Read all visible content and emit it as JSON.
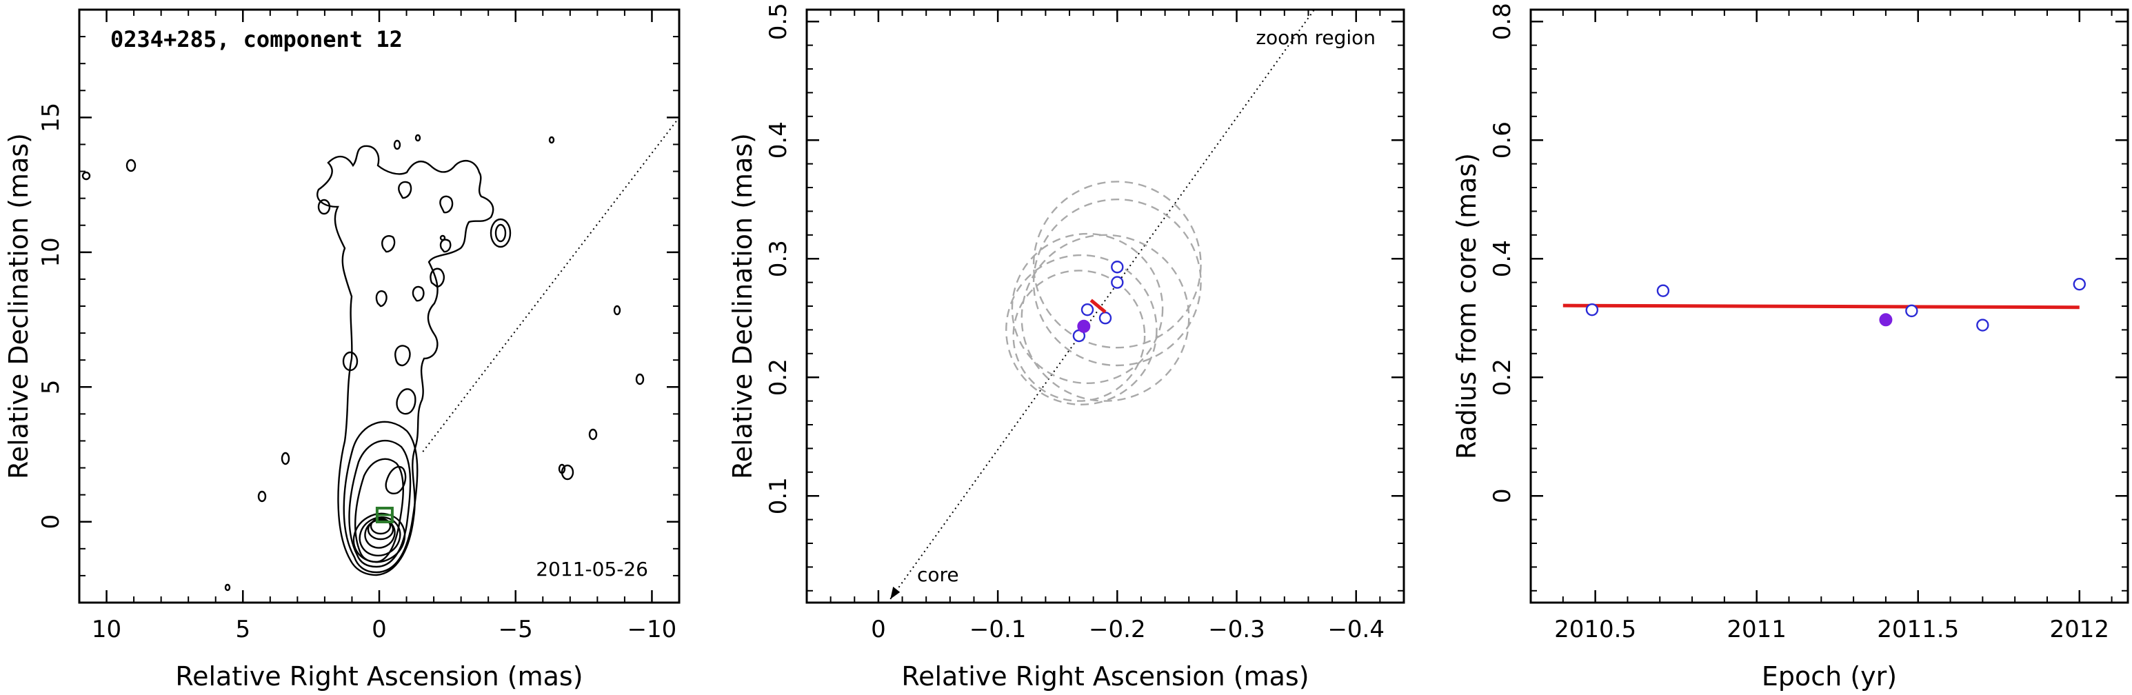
{
  "chart_data": [
    {
      "panel": "map",
      "type": "contour",
      "title": "0234+285, component 12",
      "date_label": "2011-05-26",
      "xlabel": "Relative Right Ascension (mas)",
      "ylabel": "Relative Declination (mas)",
      "xlim": [
        11,
        -11
      ],
      "ylim": [
        -3,
        19
      ],
      "xticks": [
        10,
        5,
        0,
        -5,
        -10
      ],
      "xtick_labels": [
        "10",
        "5",
        "0",
        "−5",
        "−10"
      ],
      "yticks": [
        0,
        5,
        10,
        15
      ],
      "ytick_labels": [
        "0",
        "5",
        "10",
        "15"
      ],
      "guide_line": {
        "from": [
          -1.6,
          2.6
        ],
        "to": [
          -11,
          15
        ]
      },
      "component_marker": {
        "x": -0.2,
        "y": 0.25,
        "color": "#2a7a2a"
      }
    },
    {
      "panel": "zoom",
      "type": "scatter",
      "xlabel": "Relative Right Ascension (mas)",
      "ylabel": "Relative Declination (mas)",
      "xlim": [
        0.06,
        -0.44
      ],
      "ylim": [
        0.01,
        0.51
      ],
      "xticks": [
        0,
        -0.1,
        -0.2,
        -0.3,
        -0.4
      ],
      "xtick_labels": [
        "0",
        "−0.1",
        "−0.2",
        "−0.3",
        "−0.4"
      ],
      "yticks": [
        0.1,
        0.2,
        0.3,
        0.4,
        0.5
      ],
      "ytick_labels": [
        "0.1",
        "0.2",
        "0.3",
        "0.4",
        "0.5"
      ],
      "annotations": {
        "zoom_region": "zoom region",
        "core": "core"
      },
      "guide_line": {
        "from": [
          -0.01,
          0.013
        ],
        "to": [
          -0.365,
          0.51
        ]
      },
      "circles": [
        {
          "x": -0.2,
          "y": 0.295,
          "r": 0.07
        },
        {
          "x": -0.2,
          "y": 0.28,
          "r": 0.07
        },
        {
          "x": -0.19,
          "y": 0.25,
          "r": 0.07
        },
        {
          "x": -0.175,
          "y": 0.258,
          "r": 0.063
        },
        {
          "x": -0.17,
          "y": 0.24,
          "r": 0.063
        },
        {
          "x": -0.168,
          "y": 0.235,
          "r": 0.055
        }
      ],
      "open_points": [
        {
          "x": -0.2,
          "y": 0.293
        },
        {
          "x": -0.2,
          "y": 0.28
        },
        {
          "x": -0.19,
          "y": 0.25
        },
        {
          "x": -0.175,
          "y": 0.257
        },
        {
          "x": -0.168,
          "y": 0.235
        }
      ],
      "filled_point": {
        "x": -0.172,
        "y": 0.243
      },
      "velocity_vector": {
        "from": [
          -0.178,
          0.265
        ],
        "to": [
          -0.19,
          0.255
        ]
      },
      "marker_color": "#2b2bd6",
      "filled_color": "#7b1fe0",
      "vector_color": "#e01b1b"
    },
    {
      "panel": "radius",
      "type": "scatter",
      "xlabel": "Epoch (yr)",
      "ylabel": "Radius from core (mas)",
      "xlim": [
        2010.3,
        2012.15
      ],
      "ylim": [
        -0.18,
        0.82
      ],
      "xticks": [
        2010.5,
        2011,
        2011.5,
        2012
      ],
      "xtick_labels": [
        "2010.5",
        "2011",
        "2011.5",
        "2012"
      ],
      "yticks": [
        0,
        0.2,
        0.4,
        0.6,
        0.8
      ],
      "ytick_labels": [
        "0",
        "0.2",
        "0.4",
        "0.6",
        "0.8"
      ],
      "open_points": [
        {
          "x": 2010.49,
          "y": 0.314
        },
        {
          "x": 2010.71,
          "y": 0.346
        },
        {
          "x": 2011.48,
          "y": 0.312
        },
        {
          "x": 2011.7,
          "y": 0.288
        },
        {
          "x": 2012.0,
          "y": 0.357
        }
      ],
      "filled_point": {
        "x": 2011.4,
        "y": 0.297
      },
      "fit_line": {
        "x": [
          2010.4,
          2012.0
        ],
        "y": [
          0.321,
          0.318
        ]
      },
      "marker_color": "#2b2bd6",
      "filled_color": "#7b1fe0",
      "fit_color": "#e01b1b"
    }
  ]
}
